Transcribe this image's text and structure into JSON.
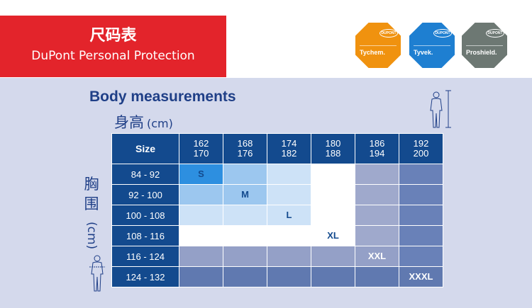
{
  "header": {
    "title_cn": "尺码表",
    "subtitle": "DuPont Personal Protection"
  },
  "brands": [
    {
      "name": "Tychem.",
      "logo_text": "DUPONT",
      "color": "#f0920f"
    },
    {
      "name": "Tyvek.",
      "logo_text": "DUPONT",
      "color": "#1e7fd1"
    },
    {
      "name": "Proshield.",
      "logo_text": "DUPONT",
      "color": "#6d7873"
    }
  ],
  "chart": {
    "title": "Body measurements",
    "height_label": "身高",
    "height_unit": "(cm)",
    "chest_label_chars": [
      "胸",
      "围"
    ],
    "chest_unit": "(cm)",
    "corner_label": "Size",
    "columns": [
      {
        "line1": "162",
        "line2": "170"
      },
      {
        "line1": "168",
        "line2": "176"
      },
      {
        "line1": "174",
        "line2": "182"
      },
      {
        "line1": "180",
        "line2": "188"
      },
      {
        "line1": "186",
        "line2": "194"
      },
      {
        "line1": "192",
        "line2": "200"
      }
    ],
    "rows": [
      {
        "label": "84 - 92",
        "size": "S"
      },
      {
        "label": "92 - 100",
        "size": "M"
      },
      {
        "label": "100 - 108",
        "size": "L"
      },
      {
        "label": "108 - 116",
        "size": "XL"
      },
      {
        "label": "116 - 124",
        "size": "XXL"
      },
      {
        "label": "124 - 132",
        "size": "XXXL"
      }
    ],
    "colors": {
      "header": "#134a8e",
      "cell_s": "#2d8fe0",
      "cell_m": "#9cc7ef",
      "cell_l": "#cde2f7",
      "cell_white": "#ffffff",
      "cell_grey_light": "#9fa9cc",
      "cell_grey_dark": "#6981b8",
      "row_xxl": "#94a0c7",
      "row_xxxl": "#6079b0"
    }
  }
}
